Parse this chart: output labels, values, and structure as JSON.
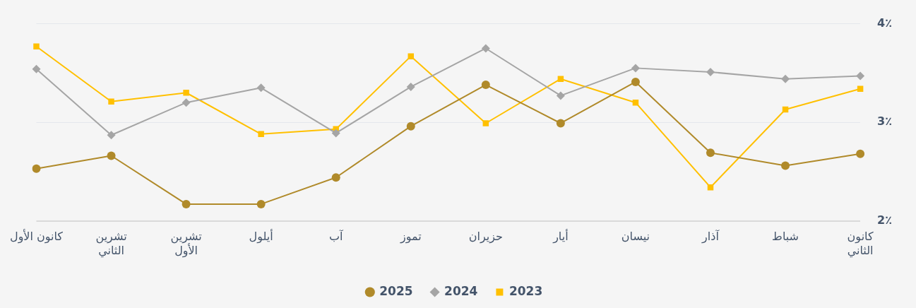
{
  "chart_data": {
    "type": "line",
    "categories": [
      "كانون الأول",
      "تشرين الثاني",
      "تشرين الأول",
      "أيلول",
      "آب",
      "تموز",
      "حزيران",
      "أيار",
      "نيسان",
      "آذار",
      "شباط",
      "كانون الثاني"
    ],
    "series": [
      {
        "name": "2025",
        "color": "#b08a2a",
        "marker": "circle",
        "values": [
          2.53,
          2.66,
          2.17,
          2.17,
          2.44,
          2.96,
          3.38,
          2.99,
          3.41,
          2.69,
          2.56,
          2.68
        ]
      },
      {
        "name": "2024",
        "color": "#a5a5a5",
        "marker": "diamond",
        "values": [
          3.54,
          2.87,
          3.2,
          3.35,
          2.89,
          3.36,
          3.75,
          3.27,
          3.55,
          3.51,
          3.44,
          3.47
        ]
      },
      {
        "name": "2023",
        "color": "#ffc000",
        "marker": "square",
        "values": [
          3.77,
          3.21,
          3.3,
          2.88,
          2.93,
          3.67,
          2.99,
          3.44,
          3.2,
          2.34,
          3.13,
          3.34
        ]
      }
    ],
    "ylim": [
      2,
      4
    ],
    "yticks": [
      {
        "value": 2,
        "label": "2٪"
      },
      {
        "value": 3,
        "label": "3٪"
      },
      {
        "value": 4,
        "label": "4٪"
      }
    ],
    "grid": "y",
    "legend": "bottom",
    "line_style": "solid"
  }
}
